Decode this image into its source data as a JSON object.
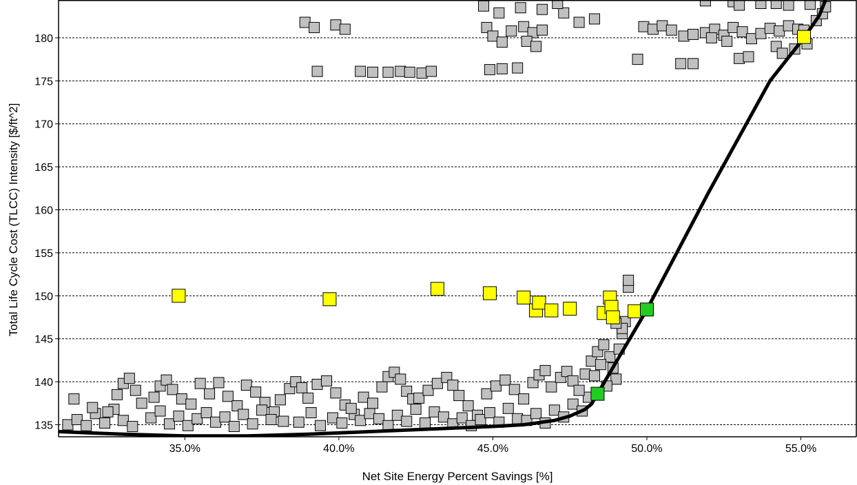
{
  "chart_data": {
    "type": "scatter",
    "title": "",
    "xlabel": "Net Site Energy Percent Savings [%]",
    "ylabel": "Total Life Cycle Cost (TLCC) Intensity [$/ft^2]",
    "xlim": [
      30.9,
      56.8
    ],
    "ylim": [
      133.6,
      184.4
    ],
    "grid": "horizontal dashed",
    "legend": "none",
    "x_ticks": [
      35,
      40,
      45,
      50,
      55
    ],
    "x_tick_labels": [
      "35.0%",
      "40.0%",
      "45.0%",
      "50.0%",
      "55.0%"
    ],
    "y_ticks": [
      135,
      140,
      145,
      150,
      155,
      160,
      165,
      170,
      175,
      180
    ],
    "y_tick_labels": [
      "135",
      "140",
      "145",
      "150",
      "155",
      "160",
      "165",
      "170",
      "175",
      "180"
    ],
    "colors": {
      "iteration": "#c0c0c0",
      "highlighted": "#ffff00",
      "pareto": "#22cc22",
      "frontier_line": "#000000"
    },
    "series": [
      {
        "marker": "square",
        "color": "#c0c0c0",
        "points": [
          [
            31.2,
            135.0
          ],
          [
            31.5,
            135.6
          ],
          [
            31.8,
            134.9
          ],
          [
            32.1,
            136.3
          ],
          [
            32.4,
            135.2
          ],
          [
            32.7,
            136.8
          ],
          [
            33.0,
            135.5
          ],
          [
            33.3,
            134.8
          ],
          [
            31.4,
            138.0
          ],
          [
            32.0,
            137.0
          ],
          [
            32.5,
            136.5
          ],
          [
            32.8,
            138.5
          ],
          [
            33.0,
            139.8
          ],
          [
            33.2,
            140.4
          ],
          [
            33.4,
            139.0
          ],
          [
            33.6,
            137.5
          ],
          [
            33.9,
            135.8
          ],
          [
            34.2,
            136.6
          ],
          [
            34.5,
            135.1
          ],
          [
            34.8,
            136.0
          ],
          [
            35.1,
            134.9
          ],
          [
            35.4,
            135.7
          ],
          [
            35.7,
            136.4
          ],
          [
            36.0,
            135.3
          ],
          [
            34.0,
            138.2
          ],
          [
            34.2,
            139.5
          ],
          [
            34.4,
            140.2
          ],
          [
            34.6,
            139.1
          ],
          [
            34.9,
            138.0
          ],
          [
            35.2,
            137.4
          ],
          [
            35.5,
            139.8
          ],
          [
            35.8,
            138.6
          ],
          [
            36.1,
            139.9
          ],
          [
            36.4,
            138.3
          ],
          [
            36.7,
            137.2
          ],
          [
            37.0,
            139.6
          ],
          [
            37.3,
            138.8
          ],
          [
            37.6,
            137.6
          ],
          [
            37.9,
            136.5
          ],
          [
            38.2,
            135.4
          ],
          [
            36.3,
            135.9
          ],
          [
            36.6,
            134.8
          ],
          [
            36.9,
            136.2
          ],
          [
            37.2,
            135.1
          ],
          [
            37.5,
            136.7
          ],
          [
            37.8,
            135.6
          ],
          [
            38.1,
            137.9
          ],
          [
            38.4,
            139.2
          ],
          [
            38.6,
            140.0
          ],
          [
            38.8,
            139.3
          ],
          [
            39.0,
            138.1
          ],
          [
            39.3,
            139.7
          ],
          [
            39.6,
            140.1
          ],
          [
            39.9,
            138.7
          ],
          [
            40.2,
            137.3
          ],
          [
            40.5,
            136.2
          ],
          [
            38.7,
            135.3
          ],
          [
            39.1,
            136.4
          ],
          [
            39.4,
            134.9
          ],
          [
            39.8,
            135.8
          ],
          [
            40.1,
            135.2
          ],
          [
            40.4,
            136.9
          ],
          [
            40.7,
            135.5
          ],
          [
            41.0,
            136.3
          ],
          [
            40.8,
            138.2
          ],
          [
            41.1,
            137.5
          ],
          [
            41.4,
            139.4
          ],
          [
            41.6,
            140.6
          ],
          [
            41.8,
            141.1
          ],
          [
            42.0,
            140.3
          ],
          [
            42.2,
            138.9
          ],
          [
            42.4,
            138.0
          ],
          [
            41.3,
            135.7
          ],
          [
            41.6,
            134.9
          ],
          [
            41.9,
            136.1
          ],
          [
            42.2,
            135.4
          ],
          [
            42.5,
            136.8
          ],
          [
            42.8,
            135.2
          ],
          [
            43.1,
            136.5
          ],
          [
            43.4,
            135.9
          ],
          [
            42.6,
            138.1
          ],
          [
            42.9,
            139.0
          ],
          [
            43.2,
            139.8
          ],
          [
            43.5,
            140.5
          ],
          [
            43.7,
            139.6
          ],
          [
            43.9,
            138.4
          ],
          [
            44.2,
            137.2
          ],
          [
            44.5,
            136.1
          ],
          [
            43.7,
            135.1
          ],
          [
            44.0,
            135.8
          ],
          [
            44.3,
            134.9
          ],
          [
            44.6,
            135.6
          ],
          [
            44.9,
            136.4
          ],
          [
            45.2,
            135.3
          ],
          [
            45.5,
            136.9
          ],
          [
            45.8,
            135.7
          ],
          [
            44.8,
            138.6
          ],
          [
            45.1,
            139.5
          ],
          [
            45.4,
            140.2
          ],
          [
            45.7,
            139.1
          ],
          [
            46.0,
            138.0
          ],
          [
            46.3,
            139.9
          ],
          [
            46.5,
            140.8
          ],
          [
            46.7,
            141.3
          ],
          [
            46.1,
            135.5
          ],
          [
            46.4,
            136.3
          ],
          [
            46.7,
            135.2
          ],
          [
            47.0,
            136.7
          ],
          [
            47.3,
            135.9
          ],
          [
            47.6,
            137.4
          ],
          [
            47.9,
            136.6
          ],
          [
            48.1,
            138.2
          ],
          [
            46.9,
            139.4
          ],
          [
            47.2,
            140.5
          ],
          [
            47.4,
            141.2
          ],
          [
            47.6,
            140.1
          ],
          [
            47.8,
            139.0
          ],
          [
            48.0,
            140.9
          ],
          [
            48.2,
            142.4
          ],
          [
            48.4,
            143.5
          ],
          [
            48.6,
            144.3
          ],
          [
            48.8,
            142.9
          ],
          [
            48.9,
            141.6
          ],
          [
            49.0,
            140.3
          ],
          [
            49.1,
            143.8
          ],
          [
            49.2,
            145.6
          ],
          [
            49.3,
            147.0
          ],
          [
            49.4,
            151.0
          ],
          [
            49.4,
            151.8
          ],
          [
            49.2,
            146.2
          ],
          [
            48.5,
            142.0
          ],
          [
            48.3,
            140.7
          ],
          [
            48.7,
            139.5
          ],
          [
            49.0,
            146.8
          ],
          [
            38.9,
            181.8
          ],
          [
            39.2,
            181.2
          ],
          [
            39.3,
            176.1
          ],
          [
            39.9,
            181.5
          ],
          [
            40.2,
            181.0
          ],
          [
            40.7,
            176.1
          ],
          [
            41.1,
            176.0
          ],
          [
            41.6,
            176.0
          ],
          [
            42.0,
            176.1
          ],
          [
            42.3,
            176.0
          ],
          [
            42.7,
            175.9
          ],
          [
            43.0,
            176.1
          ],
          [
            44.8,
            181.2
          ],
          [
            45.0,
            180.2
          ],
          [
            45.3,
            179.5
          ],
          [
            45.6,
            180.8
          ],
          [
            46.0,
            181.3
          ],
          [
            46.3,
            180.6
          ],
          [
            44.9,
            176.3
          ],
          [
            45.3,
            176.4
          ],
          [
            45.8,
            176.5
          ],
          [
            46.1,
            179.6
          ],
          [
            46.6,
            180.9
          ],
          [
            46.4,
            179.0
          ],
          [
            44.7,
            183.7
          ],
          [
            45.2,
            182.9
          ],
          [
            45.9,
            183.5
          ],
          [
            46.6,
            183.3
          ],
          [
            47.3,
            182.9
          ],
          [
            47.1,
            184.0
          ],
          [
            47.8,
            181.8
          ],
          [
            48.3,
            182.2
          ],
          [
            49.7,
            177.5
          ],
          [
            49.9,
            181.3
          ],
          [
            50.2,
            181.0
          ],
          [
            50.5,
            181.4
          ],
          [
            50.8,
            180.9
          ],
          [
            51.2,
            180.2
          ],
          [
            51.5,
            180.4
          ],
          [
            51.1,
            177.0
          ],
          [
            51.5,
            177.0
          ],
          [
            51.9,
            180.6
          ],
          [
            52.2,
            181.0
          ],
          [
            52.5,
            180.3
          ],
          [
            52.8,
            181.2
          ],
          [
            53.1,
            180.7
          ],
          [
            53.4,
            179.9
          ],
          [
            53.0,
            177.6
          ],
          [
            53.3,
            177.8
          ],
          [
            53.7,
            180.5
          ],
          [
            54.0,
            181.1
          ],
          [
            54.3,
            180.8
          ],
          [
            54.6,
            181.4
          ],
          [
            54.9,
            181.0
          ],
          [
            55.1,
            180.9
          ],
          [
            54.2,
            179.0
          ],
          [
            54.4,
            178.2
          ],
          [
            54.8,
            178.7
          ],
          [
            55.2,
            179.3
          ],
          [
            55.5,
            182.0
          ],
          [
            55.7,
            182.8
          ],
          [
            55.8,
            183.6
          ],
          [
            54.2,
            184.0
          ],
          [
            54.6,
            183.8
          ],
          [
            53.7,
            184.0
          ],
          [
            52.8,
            184.2
          ],
          [
            51.9,
            184.3
          ],
          [
            55.3,
            183.9
          ],
          [
            53.0,
            183.8
          ],
          [
            52.1,
            180.0
          ],
          [
            52.6,
            179.6
          ]
        ]
      },
      {
        "marker": "square",
        "color": "#ffff00",
        "points": [
          [
            34.8,
            150.0
          ],
          [
            39.7,
            149.6
          ],
          [
            43.2,
            150.8
          ],
          [
            44.9,
            150.3
          ],
          [
            46.0,
            149.8
          ],
          [
            46.4,
            148.3
          ],
          [
            46.5,
            149.2
          ],
          [
            46.9,
            148.3
          ],
          [
            47.5,
            148.5
          ],
          [
            48.6,
            148.0
          ],
          [
            48.8,
            149.8
          ],
          [
            48.85,
            148.7
          ],
          [
            48.9,
            147.5
          ],
          [
            49.6,
            148.2
          ],
          [
            55.1,
            180.1
          ]
        ]
      },
      {
        "marker": "square",
        "color": "#22cc22",
        "points": [
          [
            48.4,
            138.6
          ],
          [
            50.0,
            148.4
          ]
        ]
      }
    ],
    "frontier_line": {
      "x": [
        30.9,
        33.0,
        35.0,
        37.0,
        39.0,
        41.0,
        43.0,
        45.0,
        46.0,
        47.0,
        47.5,
        48.0,
        48.2,
        48.4,
        50.0,
        52.0,
        54.0,
        55.1,
        55.6,
        55.8
      ],
      "y": [
        134.2,
        133.9,
        133.7,
        133.7,
        133.9,
        134.2,
        134.5,
        134.8,
        135.0,
        135.5,
        136.0,
        136.8,
        137.4,
        138.6,
        148.4,
        162.0,
        175.0,
        180.0,
        182.6,
        184.4
      ]
    }
  }
}
